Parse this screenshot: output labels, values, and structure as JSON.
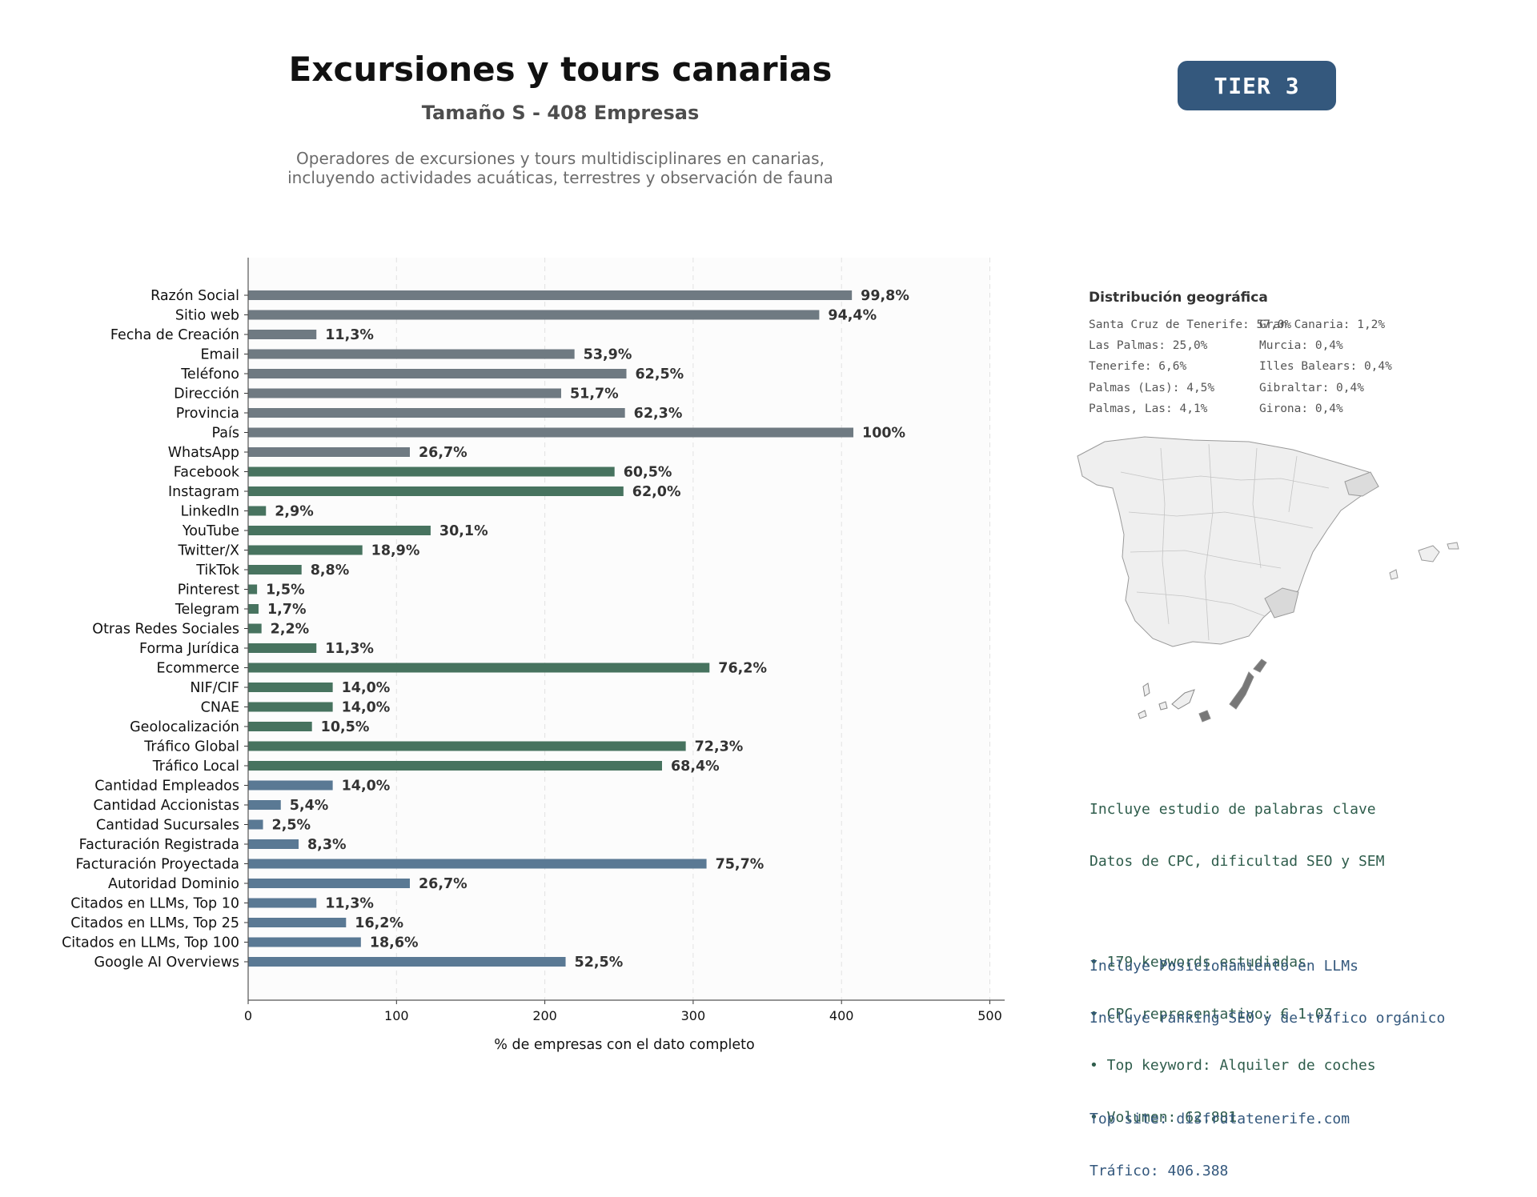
{
  "header": {
    "title": "Excursiones y tours canarias",
    "subtitle": "Tamaño S - 408 Empresas",
    "description_line1": "Operadores de excursiones y tours multidisciplinares en canarias,",
    "description_line2": "incluyendo actividades acuáticas, terrestres y observación de fauna",
    "tier_label": "TIER 3"
  },
  "colors": {
    "gray_bar": "#6f7a82",
    "green_bar": "#47735f",
    "blue_bar": "#5a7994",
    "badge_bg": "#34587d"
  },
  "chart_data": {
    "type": "bar",
    "orientation": "horizontal",
    "xlabel": "% de empresas con el dato completo",
    "xlim": [
      0,
      510
    ],
    "xticks": [
      0,
      100,
      200,
      300,
      400,
      500
    ],
    "grid": "vertical dashed",
    "categories": [
      "Razón Social",
      "Sitio web",
      "Fecha de Creación",
      "Email",
      "Teléfono",
      "Dirección",
      "Provincia",
      "País",
      "WhatsApp",
      "Facebook",
      "Instagram",
      "LinkedIn",
      "YouTube",
      "Twitter/X",
      "TikTok",
      "Pinterest",
      "Telegram",
      "Otras Redes Sociales",
      "Forma Jurídica",
      "Ecommerce",
      "NIF/CIF",
      "CNAE",
      "Geolocalización",
      "Tráfico Global",
      "Tráfico Local",
      "Cantidad Empleados",
      "Cantidad Accionistas",
      "Cantidad Sucursales",
      "Facturación Registrada",
      "Facturación Proyectada",
      "Autoridad Dominio",
      "Citados en LLMs, Top 10",
      "Citados en LLMs, Top 25",
      "Citados en LLMs, Top 100",
      "Google AI Overviews"
    ],
    "values": [
      407,
      385,
      46,
      220,
      255,
      211,
      254,
      408,
      109,
      247,
      253,
      12,
      123,
      77,
      36,
      6,
      7,
      9,
      46,
      311,
      57,
      57,
      43,
      295,
      279,
      57,
      22,
      10,
      34,
      309,
      109,
      46,
      66,
      76,
      214
    ],
    "labels": [
      "99,8%",
      "94,4%",
      "11,3%",
      "53,9%",
      "62,5%",
      "51,7%",
      "62,3%",
      "100%",
      "26,7%",
      "60,5%",
      "62,0%",
      "2,9%",
      "30,1%",
      "18,9%",
      "8,8%",
      "1,5%",
      "1,7%",
      "2,2%",
      "11,3%",
      "76,2%",
      "14,0%",
      "14,0%",
      "10,5%",
      "72,3%",
      "68,4%",
      "14,0%",
      "5,4%",
      "2,5%",
      "8,3%",
      "75,7%",
      "26,7%",
      "11,3%",
      "16,2%",
      "18,6%",
      "52,5%"
    ],
    "groups": [
      "gray",
      "gray",
      "gray",
      "gray",
      "gray",
      "gray",
      "gray",
      "gray",
      "gray",
      "green",
      "green",
      "green",
      "green",
      "green",
      "green",
      "green",
      "green",
      "green",
      "green",
      "green",
      "green",
      "green",
      "green",
      "green",
      "green",
      "blue",
      "blue",
      "blue",
      "blue",
      "blue",
      "blue",
      "blue",
      "blue",
      "blue",
      "blue"
    ]
  },
  "geo": {
    "title": "Distribución geográfica",
    "items_col1": [
      "Santa Cruz de Tenerife: 57,0%",
      "Las Palmas: 25,0%",
      "Tenerife: 6,6%",
      "Palmas (Las): 4,5%",
      "Palmas, Las: 4,1%"
    ],
    "items_col2": [
      "Gran Canaria: 1,2%",
      "Murcia: 0,4%",
      "Illes Balears: 0,4%",
      "Gibraltar: 0,4%",
      "Girona: 0,4%"
    ]
  },
  "keywords": {
    "line1": "Incluye estudio de palabras clave",
    "line2": "Datos de CPC, dificultad SEO y SEM",
    "bullet1": "• 179 keywords estudiadas",
    "bullet2": "• CPC representativo: € 1.07",
    "bullet3": "• Top keyword: Alquiler de coches",
    "bullet4": "• Volumen: 62.881"
  },
  "llm": {
    "line1": "Incluye Posicionamiento en LLMs",
    "line2": "Incluye ranking SEO y de tráfico orgánico",
    "top_site": "Top site: disfrutatenerife.com",
    "traffic": "Tráfico: 406.388"
  }
}
